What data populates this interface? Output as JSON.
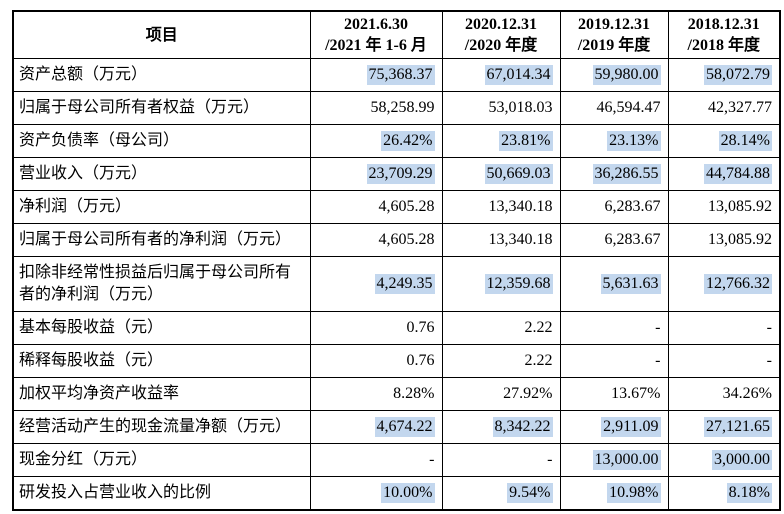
{
  "colors": {
    "highlight": "#c3d7ee",
    "border": "#000000",
    "text": "#000000",
    "background": "#ffffff"
  },
  "table": {
    "item_header": "项目",
    "period_headers": [
      {
        "line1": "2021.6.30",
        "line2": "/2021 年 1-6 月"
      },
      {
        "line1": "2020.12.31",
        "line2": "/2020 年度"
      },
      {
        "line1": "2019.12.31",
        "line2": "/2019 年度"
      },
      {
        "line1": "2018.12.31",
        "line2": "/2018 年度"
      }
    ],
    "rows": [
      {
        "label": "资产总额（万元）",
        "values": [
          "75,368.37",
          "67,014.34",
          "59,980.00",
          "58,072.79"
        ],
        "highlighted": [
          true,
          true,
          true,
          true
        ]
      },
      {
        "label": "归属于母公司所有者权益（万元）",
        "values": [
          "58,258.99",
          "53,018.03",
          "46,594.47",
          "42,327.77"
        ],
        "highlighted": [
          false,
          false,
          false,
          false
        ]
      },
      {
        "label": "资产负债率（母公司）",
        "values": [
          "26.42%",
          "23.81%",
          "23.13%",
          "28.14%"
        ],
        "highlighted": [
          true,
          true,
          true,
          true
        ]
      },
      {
        "label": "营业收入（万元）",
        "values": [
          "23,709.29",
          "50,669.03",
          "36,286.55",
          "44,784.88"
        ],
        "highlighted": [
          true,
          true,
          true,
          true
        ]
      },
      {
        "label": "净利润（万元）",
        "values": [
          "4,605.28",
          "13,340.18",
          "6,283.67",
          "13,085.92"
        ],
        "highlighted": [
          false,
          false,
          false,
          false
        ]
      },
      {
        "label": "归属于母公司所有者的净利润（万元）",
        "values": [
          "4,605.28",
          "13,340.18",
          "6,283.67",
          "13,085.92"
        ],
        "highlighted": [
          false,
          false,
          false,
          false
        ]
      },
      {
        "label": "扣除非经常性损益后归属于母公司所有者的净利润（万元）",
        "values": [
          "4,249.35",
          "12,359.68",
          "5,631.63",
          "12,766.32"
        ],
        "highlighted": [
          true,
          true,
          true,
          true
        ]
      },
      {
        "label": "基本每股收益（元）",
        "values": [
          "0.76",
          "2.22",
          "-",
          "-"
        ],
        "highlighted": [
          false,
          false,
          false,
          false
        ]
      },
      {
        "label": "稀释每股收益（元）",
        "values": [
          "0.76",
          "2.22",
          "-",
          "-"
        ],
        "highlighted": [
          false,
          false,
          false,
          false
        ]
      },
      {
        "label": "加权平均净资产收益率",
        "values": [
          "8.28%",
          "27.92%",
          "13.67%",
          "34.26%"
        ],
        "highlighted": [
          false,
          false,
          false,
          false
        ]
      },
      {
        "label": "经营活动产生的现金流量净额（万元）",
        "values": [
          "4,674.22",
          "8,342.22",
          "2,911.09",
          "27,121.65"
        ],
        "highlighted": [
          true,
          true,
          true,
          true
        ]
      },
      {
        "label": "现金分红（万元）",
        "values": [
          "-",
          "-",
          "13,000.00",
          "3,000.00"
        ],
        "highlighted": [
          false,
          false,
          true,
          true
        ]
      },
      {
        "label": "研发投入占营业收入的比例",
        "values": [
          "10.00%",
          "9.54%",
          "10.98%",
          "8.18%"
        ],
        "highlighted": [
          true,
          true,
          true,
          true
        ]
      }
    ]
  }
}
